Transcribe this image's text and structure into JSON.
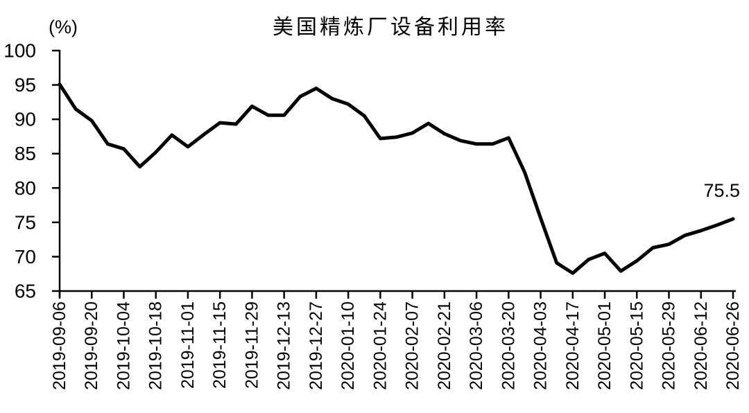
{
  "chart_data": {
    "type": "line",
    "title": "美国精炼厂设备利用率",
    "unit_label": "(%)",
    "last_value_label": "75.5",
    "line_color": "#000000",
    "background_color": "#ffffff",
    "grid": "off",
    "legend": "none",
    "ylim": [
      65,
      100
    ],
    "y_ticks": [
      100,
      95,
      90,
      85,
      80,
      75,
      70,
      65
    ],
    "x_tick_every": 2,
    "x_tick_labels": [
      "2019-09-06",
      "2019-09-20",
      "2019-10-04",
      "2019-10-18",
      "2019-11-01",
      "2019-11-15",
      "2019-11-29",
      "2019-12-13",
      "2019-12-27",
      "2020-01-10",
      "2020-01-24",
      "2020-02-07",
      "2020-02-21",
      "2020-03-06",
      "2020-03-20",
      "2020-04-03",
      "2020-04-17",
      "2020-05-01",
      "2020-05-15",
      "2020-05-29",
      "2020-06-12",
      "2020-06-26"
    ],
    "x": [
      "2019-09-06",
      "2019-09-13",
      "2019-09-20",
      "2019-09-27",
      "2019-10-04",
      "2019-10-11",
      "2019-10-18",
      "2019-10-25",
      "2019-11-01",
      "2019-11-08",
      "2019-11-15",
      "2019-11-22",
      "2019-11-29",
      "2019-12-06",
      "2019-12-13",
      "2019-12-20",
      "2019-12-27",
      "2020-01-03",
      "2020-01-10",
      "2020-01-17",
      "2020-01-24",
      "2020-01-31",
      "2020-02-07",
      "2020-02-14",
      "2020-02-21",
      "2020-02-28",
      "2020-03-06",
      "2020-03-13",
      "2020-03-20",
      "2020-03-27",
      "2020-04-03",
      "2020-04-10",
      "2020-04-17",
      "2020-04-24",
      "2020-05-01",
      "2020-05-08",
      "2020-05-15",
      "2020-05-22",
      "2020-05-29",
      "2020-06-05",
      "2020-06-12",
      "2020-06-19",
      "2020-06-26"
    ],
    "values": [
      95.1,
      91.5,
      89.8,
      86.4,
      85.7,
      83.1,
      85.2,
      87.7,
      86.0,
      87.8,
      89.5,
      89.3,
      91.9,
      90.6,
      90.6,
      93.3,
      94.5,
      93.0,
      92.2,
      90.5,
      87.2,
      87.4,
      88.0,
      89.4,
      87.9,
      86.9,
      86.4,
      86.4,
      87.3,
      82.3,
      75.6,
      69.1,
      67.6,
      69.6,
      70.5,
      67.9,
      69.4,
      71.3,
      71.8,
      73.1,
      73.8,
      74.6,
      75.5
    ]
  }
}
